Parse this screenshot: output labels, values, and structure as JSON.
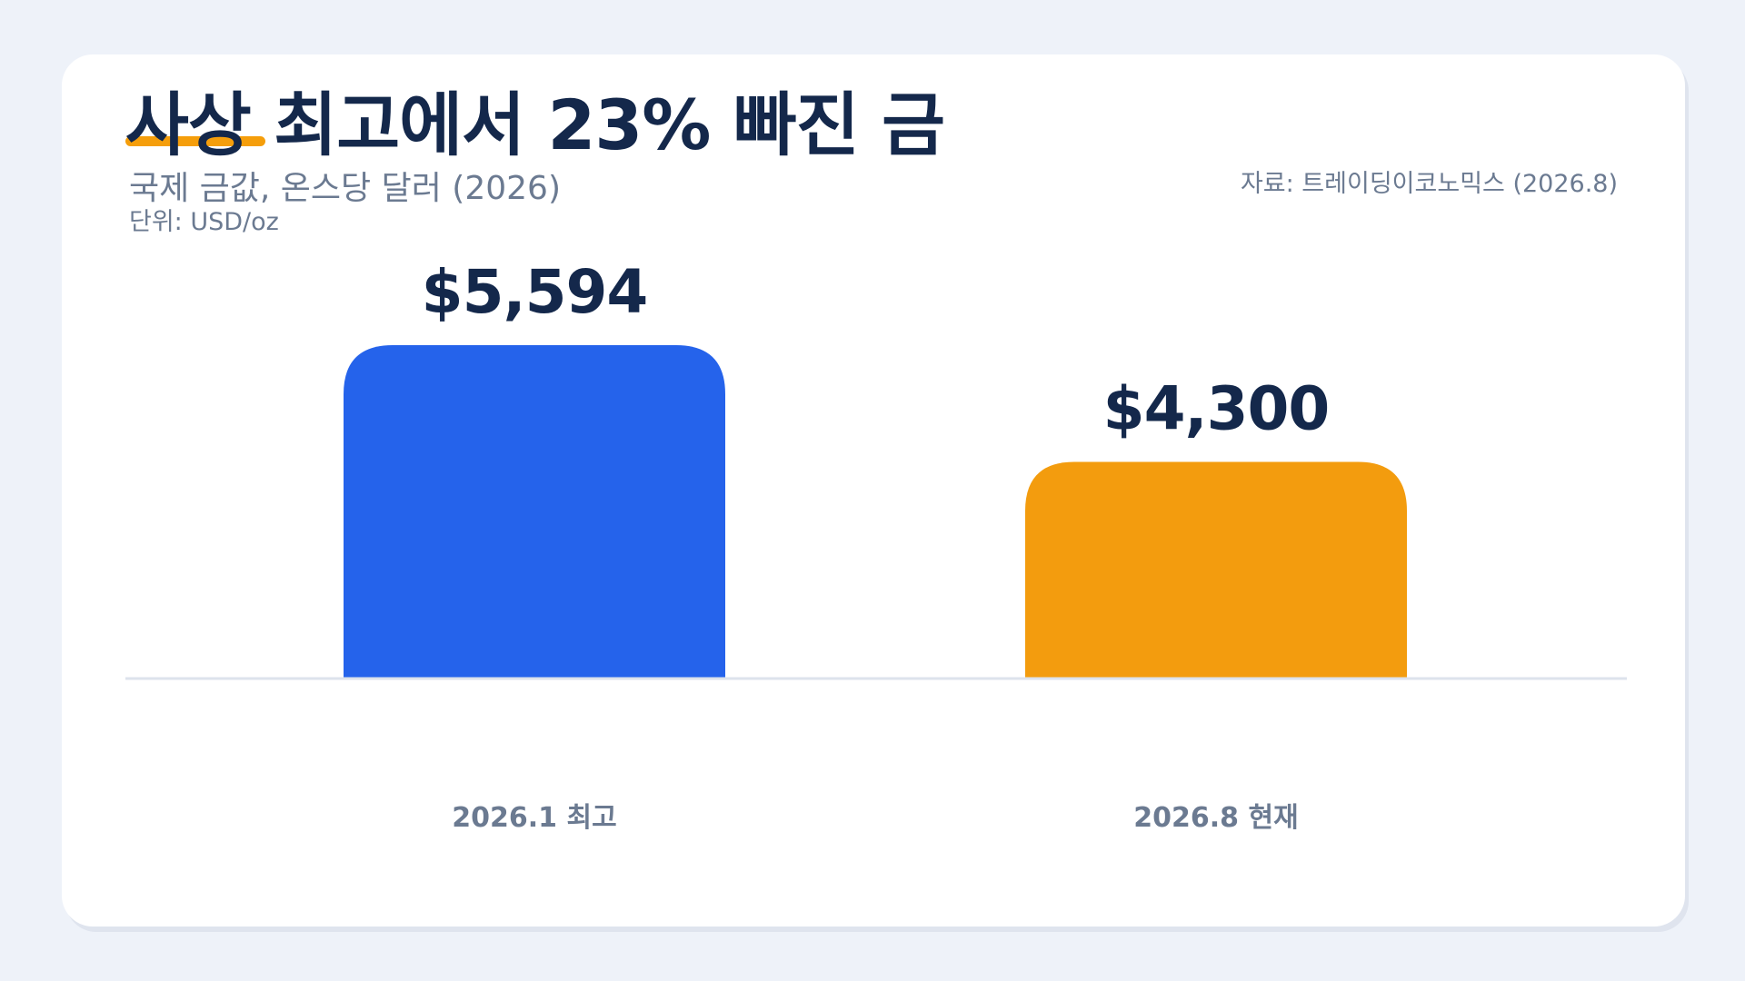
{
  "header": {
    "title": "사상 최고에서 23% 빠진 금",
    "subtitle": "국제 금값, 온스당 달러 (2026)",
    "unit": "단위: USD/oz",
    "source": "자료: 트레이딩이코노믹스 (2026.8)"
  },
  "colors": {
    "accent": "#f59e0b",
    "bar_peak": "#2563eb",
    "bar_current": "#f39c0e",
    "text_dark": "#14284b",
    "text_muted": "#6b7a91",
    "baseline": "#dde3ec"
  },
  "chart_data": {
    "type": "bar",
    "title": "사상 최고에서 23% 빠진 금",
    "subtitle": "국제 금값, 온스당 달러 (2026)",
    "unit": "단위: USD/oz",
    "categories": [
      "2026.1 최고",
      "2026.8 현재"
    ],
    "values": [
      5594,
      4300
    ],
    "value_labels": [
      "$5,594",
      "$4,300"
    ],
    "bar_colors": [
      "#2563eb",
      "#f39c0e"
    ],
    "ylim": [
      1900,
      5594
    ],
    "grid": false,
    "legend": "none",
    "source": "자료: 트레이딩이코노믹스 (2026.8)"
  }
}
